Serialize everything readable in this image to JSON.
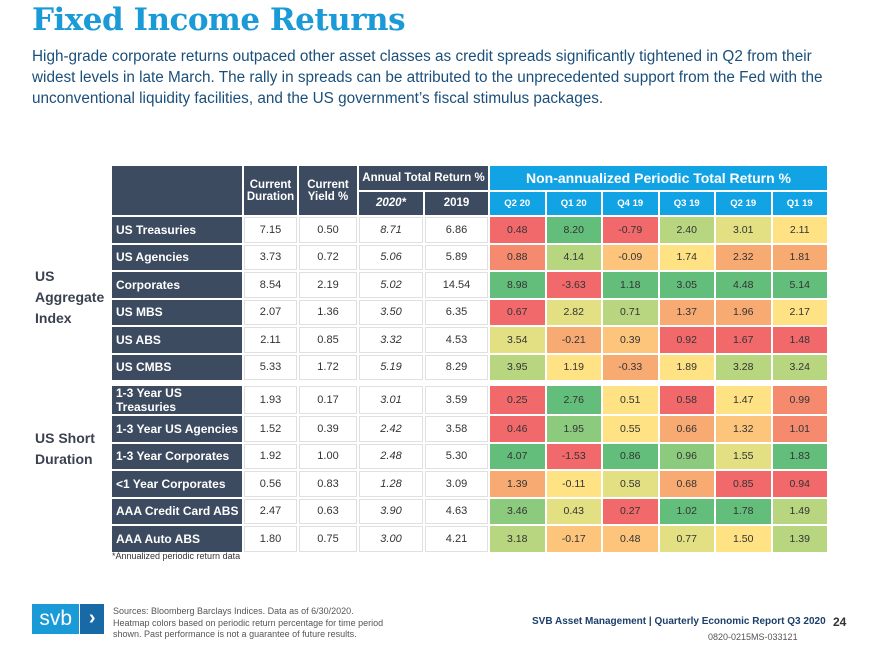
{
  "title": "Fixed Income Returns",
  "intro": "High-grade corporate returns outpaced other asset classes as credit spreads significantly tightened in Q2 from their widest levels in late March. The rally in spreads can be attributed to the unprecedented support from the Fed with the unconventional liquidity facilities, and the US government’s fiscal stimulus packages.",
  "groups": {
    "aggregate": "US Aggregate Index",
    "short": "US Short Duration"
  },
  "headers": {
    "duration": "Current Duration",
    "yield": "Current Yield %",
    "annual": "Annual Total Return %",
    "y2020": "2020*",
    "y2019": "2019",
    "periodic": "Non-annualized Periodic Total Return %",
    "quarters": [
      "Q2 20",
      "Q1 20",
      "Q4 19",
      "Q3 19",
      "Q2 19",
      "Q1 19"
    ]
  },
  "rows": [
    {
      "name": "US Treasuries",
      "duration": "7.15",
      "yield": "0.50",
      "r2020": "8.71",
      "r2019": "6.86",
      "q": [
        "0.48",
        "8.20",
        "-0.79",
        "2.40",
        "3.01",
        "2.11"
      ],
      "c": [
        "#f2696c",
        "#63be7b",
        "#f2696c",
        "#b8d57f",
        "#e2e083",
        "#fee283"
      ]
    },
    {
      "name": "US Agencies",
      "duration": "3.73",
      "yield": "0.72",
      "r2020": "5.06",
      "r2019": "5.89",
      "q": [
        "0.88",
        "4.14",
        "-0.09",
        "1.74",
        "2.32",
        "1.81"
      ],
      "c": [
        "#f58a6f",
        "#b8d57f",
        "#fcc57b",
        "#fee283",
        "#f8aa73",
        "#f8aa73"
      ]
    },
    {
      "name": "Corporates",
      "duration": "8.54",
      "yield": "2.19",
      "r2020": "5.02",
      "r2019": "14.54",
      "q": [
        "8.98",
        "-3.63",
        "1.18",
        "3.05",
        "4.48",
        "5.14"
      ],
      "c": [
        "#63be7b",
        "#f2696c",
        "#63be7b",
        "#63be7b",
        "#63be7b",
        "#63be7b"
      ]
    },
    {
      "name": "US MBS",
      "duration": "2.07",
      "yield": "1.36",
      "r2020": "3.50",
      "r2019": "6.35",
      "q": [
        "0.67",
        "2.82",
        "0.71",
        "1.37",
        "1.96",
        "2.17"
      ],
      "c": [
        "#f2696c",
        "#e2e083",
        "#b8d57f",
        "#f8aa73",
        "#f8aa73",
        "#fee283"
      ]
    },
    {
      "name": "US ABS",
      "duration": "2.11",
      "yield": "0.85",
      "r2020": "3.32",
      "r2019": "4.53",
      "q": [
        "3.54",
        "-0.21",
        "0.39",
        "0.92",
        "1.67",
        "1.48"
      ],
      "c": [
        "#e2e083",
        "#f8aa73",
        "#fcc57b",
        "#f2696c",
        "#f2696c",
        "#f2696c"
      ]
    },
    {
      "name": "US CMBS",
      "duration": "5.33",
      "yield": "1.72",
      "r2020": "5.19",
      "r2019": "8.29",
      "q": [
        "3.95",
        "1.19",
        "-0.33",
        "1.89",
        "3.28",
        "3.24"
      ],
      "c": [
        "#b8d57f",
        "#fee283",
        "#f8aa73",
        "#fee283",
        "#b8d57f",
        "#b8d57f"
      ]
    },
    {
      "name": "1-3 Year US Treasuries",
      "duration": "1.93",
      "yield": "0.17",
      "r2020": "3.01",
      "r2019": "3.59",
      "q": [
        "0.25",
        "2.76",
        "0.51",
        "0.58",
        "1.47",
        "0.99"
      ],
      "c": [
        "#f2696c",
        "#63be7b",
        "#fee283",
        "#f2696c",
        "#fee283",
        "#f58a6f"
      ]
    },
    {
      "name": "1-3 Year US Agencies",
      "duration": "1.52",
      "yield": "0.39",
      "r2020": "2.42",
      "r2019": "3.58",
      "q": [
        "0.46",
        "1.95",
        "0.55",
        "0.66",
        "1.32",
        "1.01"
      ],
      "c": [
        "#f2696c",
        "#8ccb7e",
        "#fee283",
        "#f8aa73",
        "#fcc57b",
        "#f58a6f"
      ]
    },
    {
      "name": "1-3 Year Corporates",
      "duration": "1.92",
      "yield": "1.00",
      "r2020": "2.48",
      "r2019": "5.30",
      "q": [
        "4.07",
        "-1.53",
        "0.86",
        "0.96",
        "1.55",
        "1.83"
      ],
      "c": [
        "#63be7b",
        "#f2696c",
        "#63be7b",
        "#8ccb7e",
        "#e2e083",
        "#63be7b"
      ]
    },
    {
      "name": "<1 Year Corporates",
      "duration": "0.56",
      "yield": "0.83",
      "r2020": "1.28",
      "r2019": "3.09",
      "q": [
        "1.39",
        "-0.11",
        "0.58",
        "0.68",
        "0.85",
        "0.94"
      ],
      "c": [
        "#f8aa73",
        "#fee283",
        "#e2e083",
        "#f8aa73",
        "#f2696c",
        "#f2696c"
      ]
    },
    {
      "name": "AAA Credit Card ABS",
      "duration": "2.47",
      "yield": "0.63",
      "r2020": "3.90",
      "r2019": "4.63",
      "q": [
        "3.46",
        "0.43",
        "0.27",
        "1.02",
        "1.78",
        "1.49"
      ],
      "c": [
        "#8ccb7e",
        "#e2e083",
        "#f2696c",
        "#63be7b",
        "#63be7b",
        "#b8d57f"
      ]
    },
    {
      "name": "AAA Auto ABS",
      "duration": "1.80",
      "yield": "0.75",
      "r2020": "3.00",
      "r2019": "4.21",
      "q": [
        "3.18",
        "-0.17",
        "0.48",
        "0.77",
        "1.50",
        "1.39"
      ],
      "c": [
        "#b8d57f",
        "#fcc57b",
        "#fcc57b",
        "#e2e083",
        "#fee283",
        "#b8d57f"
      ]
    }
  ],
  "note": "*Annualized periodic return data",
  "footer": {
    "logo": "svb",
    "sources": [
      "Sources: Bloomberg Barclays Indices. Data as of 6/30/2020.",
      "Heatmap colors based on periodic return percentage for time period",
      "shown. Past performance is not a guarantee of future results."
    ],
    "report": "SVB Asset Management | Quarterly Economic Report Q3 2020",
    "code": "0820-0215MS-033121",
    "page": "24"
  }
}
